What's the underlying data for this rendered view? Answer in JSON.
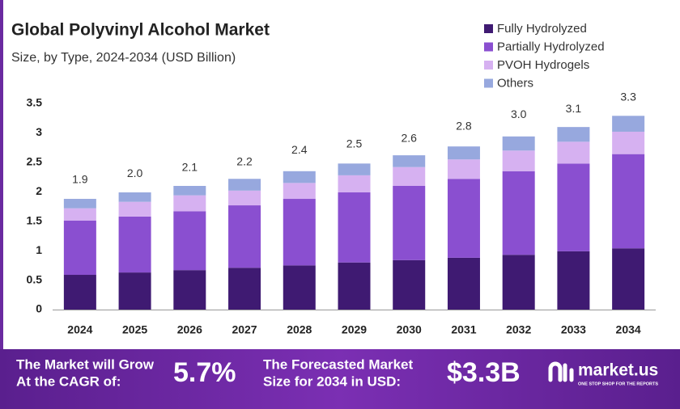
{
  "chart_data": {
    "type": "stacked-bar",
    "title": "Global Polyvinyl Alcohol Market",
    "subtitle": "Size, by Type, 2024-2034 (USD Billion)",
    "categories": [
      "2024",
      "2025",
      "2026",
      "2027",
      "2028",
      "2029",
      "2030",
      "2031",
      "2032",
      "2033",
      "2034"
    ],
    "series": [
      {
        "name": "Fully Hydrolyzed",
        "color": "#3f1a72",
        "values": [
          0.59,
          0.63,
          0.67,
          0.71,
          0.75,
          0.8,
          0.84,
          0.88,
          0.93,
          0.99,
          1.04
        ]
      },
      {
        "name": "Partially Hydrolyzed",
        "color": "#8a4fd0",
        "values": [
          0.92,
          0.95,
          1.0,
          1.06,
          1.13,
          1.19,
          1.26,
          1.34,
          1.42,
          1.49,
          1.6
        ]
      },
      {
        "name": "PVOH Hydrogels",
        "color": "#d6b1f1",
        "values": [
          0.21,
          0.25,
          0.27,
          0.25,
          0.27,
          0.29,
          0.32,
          0.33,
          0.35,
          0.37,
          0.38
        ]
      },
      {
        "name": "Others",
        "color": "#97a8de",
        "values": [
          0.16,
          0.16,
          0.16,
          0.2,
          0.2,
          0.2,
          0.2,
          0.22,
          0.24,
          0.25,
          0.27
        ]
      }
    ],
    "totals": {
      "values": [
        1.9,
        2.0,
        2.1,
        2.2,
        2.4,
        2.5,
        2.6,
        2.8,
        3.0,
        3.1,
        3.3
      ],
      "value_labels": [
        "1.9",
        "2.0",
        "2.1",
        "2.2",
        "2.4",
        "2.5",
        "2.6",
        "2.8",
        "3.0",
        "3.1",
        "3.3"
      ]
    },
    "ylim": [
      0,
      3.5
    ],
    "yticks": [
      0,
      0.5,
      1,
      1.5,
      2,
      2.5,
      3,
      3.5
    ],
    "grid": false,
    "legend": "top-right"
  },
  "footer": {
    "cagr_text": [
      "The Market will Grow",
      "At the CAGR of:"
    ],
    "cagr": "5.7%",
    "forecast_text": [
      "The Forecasted Market",
      "Size for 2034 in USD:"
    ],
    "forecast": "$3.3B",
    "brand": "market.us",
    "tagline": "ONE STOP SHOP FOR THE REPORTS"
  }
}
